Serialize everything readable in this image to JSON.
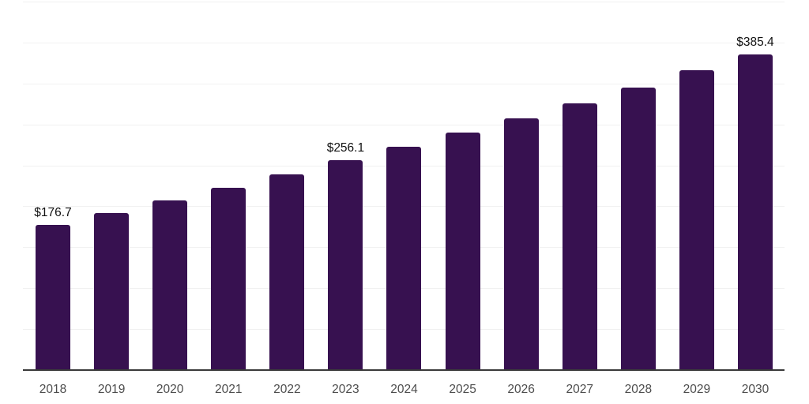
{
  "chart_data": {
    "type": "bar",
    "title": "",
    "xlabel": "",
    "ylabel": "",
    "categories": [
      "2018",
      "2019",
      "2020",
      "2021",
      "2022",
      "2023",
      "2024",
      "2025",
      "2026",
      "2027",
      "2028",
      "2029",
      "2030"
    ],
    "values": [
      176.7,
      191.5,
      207.3,
      222.3,
      239.3,
      256.1,
      273.0,
      289.6,
      307.4,
      325.4,
      345.1,
      366.4,
      385.4
    ],
    "point_labels": {
      "2018": "$176.7",
      "2023": "$256.1",
      "2030": "$385.4"
    },
    "value_prefix": "$",
    "ylim": [
      0,
      450
    ],
    "gridline_interval": 50,
    "grid": "horizontal",
    "legend_position": "none",
    "colors": {
      "bar": "#371150",
      "gridline": "#f1f1f1",
      "axis_line": "#3a3a3a",
      "value_label": "#111111",
      "tick_label": "#4d4d4d",
      "background": "#ffffff"
    }
  }
}
